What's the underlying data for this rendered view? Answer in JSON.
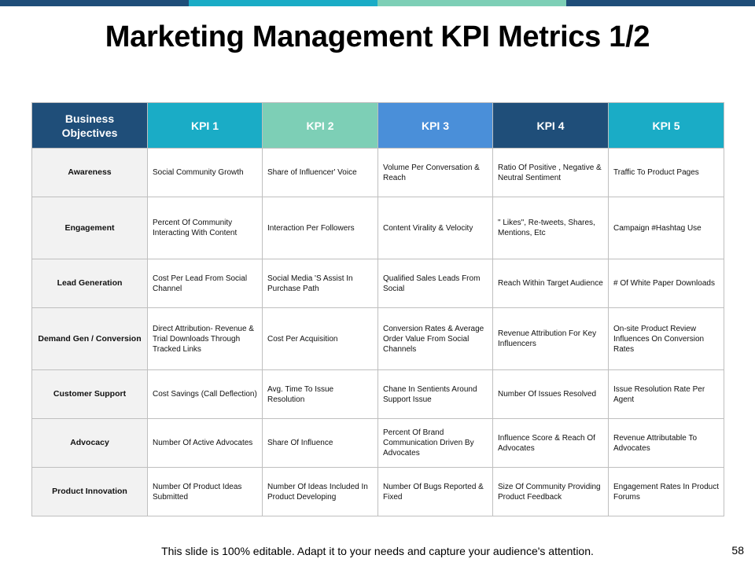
{
  "slide": {
    "title": "Marketing Management KPI Metrics 1/2",
    "footer": "This slide is 100% editable. Adapt it to your needs and capture your audience's attention.",
    "page_number": "58"
  },
  "colors": {
    "bar": [
      "#1f4e79",
      "#1aacc6",
      "#7dcfb6",
      "#1f4e79"
    ],
    "header": [
      "#1f4e79",
      "#1aacc6",
      "#7dcfb6",
      "#4a8fd9",
      "#1f4e79",
      "#1aacc6"
    ]
  },
  "table": {
    "headers": [
      "Business Objectives",
      "KPI 1",
      "KPI 2",
      "KPI 3",
      "KPI 4",
      "KPI 5"
    ],
    "rows": [
      {
        "objective": "Awareness",
        "cells": [
          "Social Community  Growth",
          "Share of Influencer' Voice",
          "Volume Per Conversation & Reach",
          "Ratio Of Positive  , Negative & Neutral Sentiment",
          "Traffic To Product Pages"
        ]
      },
      {
        "objective": "Engagement",
        "cells": [
          "Percent Of Community Interacting With Content",
          "Interaction Per Followers",
          "Content Virality & Velocity",
          "\" Likes\", Re-tweets, Shares, Mentions, Etc",
          "Campaign  #Hashtag Use"
        ]
      },
      {
        "objective": "Lead Generation",
        "cells": [
          "Cost Per Lead From Social Channel",
          "Social Media 'S Assist In Purchase Path",
          "Qualified Sales Leads From Social",
          "Reach Within Target Audience",
          "# Of White Paper Downloads"
        ]
      },
      {
        "objective": "Demand Gen / Conversion",
        "cells": [
          "Direct Attribution- Revenue & Trial Downloads Through Tracked Links",
          "Cost Per Acquisition",
          "Conversion Rates & Average Order Value From Social  Channels",
          "Revenue Attribution For Key Influencers",
          "On-site Product Review Influences On Conversion Rates"
        ]
      },
      {
        "objective": "Customer Support",
        "cells": [
          "Cost Savings (Call Deflection)",
          "Avg. Time To Issue Resolution",
          "Chane In Sentients Around Support Issue",
          "Number Of Issues Resolved",
          "Issue Resolution Rate Per Agent"
        ]
      },
      {
        "objective": "Advocacy",
        "cells": [
          "Number Of Active Advocates",
          "Share Of Influence",
          "Percent Of Brand Communication  Driven By Advocates",
          "Influence Score & Reach Of Advocates",
          "Revenue Attributable To Advocates"
        ]
      },
      {
        "objective": "Product Innovation",
        "cells": [
          "Number Of Product Ideas Submitted",
          "Number Of Ideas Included In Product Developing",
          "Number Of Bugs Reported & Fixed",
          "Size Of Community Providing Product Feedback",
          "Engagement  Rates In Product Forums"
        ]
      }
    ]
  }
}
